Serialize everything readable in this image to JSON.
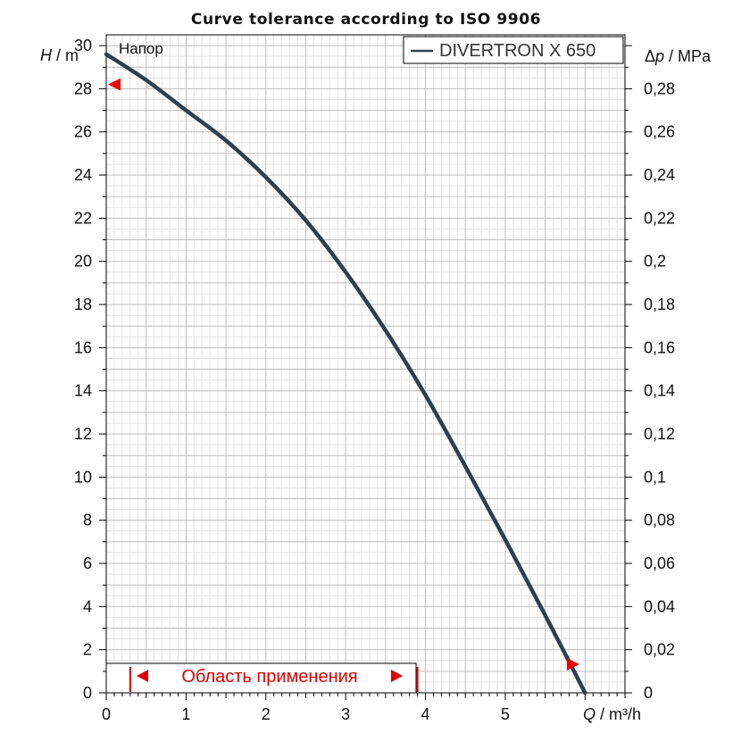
{
  "chart_data": {
    "type": "line",
    "title": "Curve tolerance according to ISO 9906",
    "xlabel_var": "Q",
    "xlabel_unit": " / m³/h",
    "ylabel_var": "H",
    "ylabel_unit": " / m",
    "y2label_prefix": "Δ",
    "y2label_var": "p",
    "y2label_unit": " / MPa",
    "curve_label": "Напор",
    "xlim": [
      0,
      6.5
    ],
    "ylim": [
      0,
      30.5
    ],
    "y2lim": [
      0,
      0.305
    ],
    "x_ticks": [
      "0",
      "1",
      "2",
      "3",
      "4",
      "5"
    ],
    "y_ticks": [
      "0",
      "2",
      "4",
      "6",
      "8",
      "10",
      "12",
      "14",
      "16",
      "18",
      "20",
      "22",
      "24",
      "26",
      "28",
      "30"
    ],
    "y2_ticks": [
      "0",
      "0,02",
      "0,04",
      "0,06",
      "0,08",
      "0,1",
      "0,12",
      "0,14",
      "0,16",
      "0,18",
      "0,2",
      "0,22",
      "0,24",
      "0,26",
      "0,28"
    ],
    "series": [
      {
        "name": "DIVERTRON X 650",
        "color": "#333f48",
        "x": [
          0,
          0.5,
          1,
          1.5,
          2,
          2.5,
          3,
          3.5,
          4,
          4.5,
          5,
          5.5,
          6
        ],
        "y": [
          29.6,
          28.4,
          27.0,
          25.6,
          23.9,
          21.9,
          19.5,
          16.8,
          13.8,
          10.5,
          7.1,
          3.6,
          0
        ]
      }
    ],
    "tolerance_markers": {
      "head_at_zero_flow": 28.2,
      "flow_at_zero_head": 5.95
    },
    "application_range": {
      "label": "Область применения",
      "start": 0.3,
      "end": 3.9
    }
  }
}
